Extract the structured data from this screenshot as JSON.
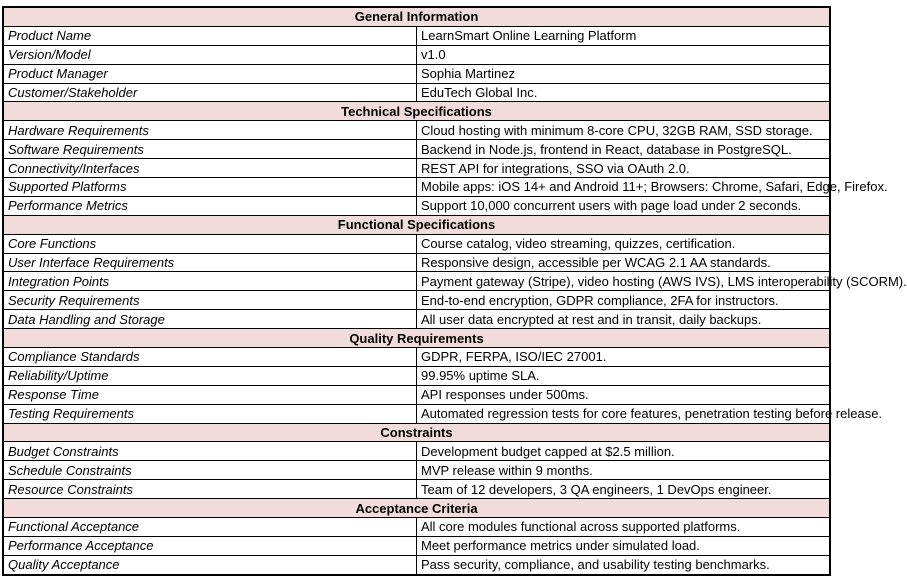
{
  "document": {
    "type": "product-specification-table",
    "colors": {
      "section_header_bg": "#F2DCDB",
      "border": "#000000",
      "text": "#000000",
      "row_bg": "#FFFFFF"
    },
    "sections": [
      {
        "title": "General Information",
        "rows": [
          {
            "label": "Product Name",
            "value": "LearnSmart Online Learning Platform"
          },
          {
            "label": "Version/Model",
            "value": "v1.0"
          },
          {
            "label": "Product Manager",
            "value": "Sophia Martinez"
          },
          {
            "label": "Customer/Stakeholder",
            "value": "EduTech Global Inc."
          }
        ]
      },
      {
        "title": "Technical Specifications",
        "rows": [
          {
            "label": "Hardware Requirements",
            "value": "Cloud hosting with minimum 8-core CPU, 32GB RAM, SSD storage."
          },
          {
            "label": "Software Requirements",
            "value": "Backend in Node.js, frontend in React, database in PostgreSQL."
          },
          {
            "label": "Connectivity/Interfaces",
            "value": "REST API for integrations, SSO via OAuth 2.0."
          },
          {
            "label": "Supported Platforms",
            "value": "Mobile apps: iOS 14+ and Android 11+; Browsers: Chrome, Safari, Edge, Firefox."
          },
          {
            "label": "Performance Metrics",
            "value": "Support 10,000 concurrent users with page load under 2 seconds."
          }
        ]
      },
      {
        "title": "Functional Specifications",
        "rows": [
          {
            "label": "Core Functions",
            "value": "Course catalog, video streaming, quizzes, certification."
          },
          {
            "label": "User Interface Requirements",
            "value": "Responsive design, accessible per WCAG 2.1 AA standards."
          },
          {
            "label": "Integration Points",
            "value": "Payment gateway (Stripe), video hosting (AWS IVS), LMS interoperability (SCORM)."
          },
          {
            "label": "Security Requirements",
            "value": "End-to-end encryption, GDPR compliance, 2FA for instructors."
          },
          {
            "label": "Data Handling and Storage",
            "value": "All user data encrypted at rest and in transit, daily backups."
          }
        ]
      },
      {
        "title": "Quality Requirements",
        "rows": [
          {
            "label": "Compliance Standards",
            "value": "GDPR, FERPA, ISO/IEC 27001."
          },
          {
            "label": "Reliability/Uptime",
            "value": "99.95% uptime SLA."
          },
          {
            "label": "Response Time",
            "value": "API responses under 500ms."
          },
          {
            "label": "Testing Requirements",
            "value": "Automated regression tests for core features, penetration testing before release."
          }
        ]
      },
      {
        "title": "Constraints",
        "rows": [
          {
            "label": "Budget Constraints",
            "value": "Development budget capped at $2.5 million."
          },
          {
            "label": "Schedule Constraints",
            "value": "MVP release within 9 months."
          },
          {
            "label": "Resource Constraints",
            "value": "Team of 12 developers, 3 QA engineers, 1 DevOps engineer."
          }
        ]
      },
      {
        "title": "Acceptance Criteria",
        "rows": [
          {
            "label": "Functional Acceptance",
            "value": "All core modules functional across supported platforms."
          },
          {
            "label": "Performance Acceptance",
            "value": "Meet performance metrics under simulated load."
          },
          {
            "label": "Quality Acceptance",
            "value": "Pass security, compliance, and usability testing benchmarks."
          }
        ]
      }
    ]
  }
}
